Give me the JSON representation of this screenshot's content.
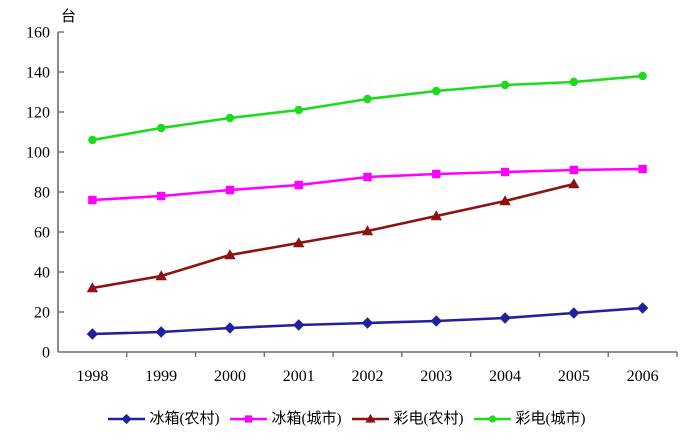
{
  "chart_data": {
    "type": "line",
    "title": "",
    "unit_label": "台",
    "xlabel": "",
    "ylabel": "台",
    "categories": [
      "1998",
      "1999",
      "2000",
      "2001",
      "2002",
      "2003",
      "2004",
      "2005",
      "2006"
    ],
    "series": [
      {
        "name": "冰箱(农村)",
        "marker": "diamond",
        "color": "#21219E",
        "values": [
          9,
          10,
          12,
          13.5,
          14.5,
          15.5,
          17,
          19.5,
          22
        ]
      },
      {
        "name": "冰箱(城市)",
        "marker": "square",
        "color": "#FF00FF",
        "values": [
          76,
          78,
          81,
          83.5,
          87.5,
          89,
          90,
          91,
          91.5
        ]
      },
      {
        "name": "彩电(农村)",
        "marker": "triangle",
        "color": "#8E1111",
        "values": [
          32,
          38,
          48.5,
          54.5,
          60.5,
          68,
          75.5,
          84,
          null
        ]
      },
      {
        "name": "彩电(城市)",
        "marker": "circle",
        "color": "#1CDB1C",
        "values": [
          106,
          112,
          117,
          121,
          126.5,
          130.5,
          133.5,
          135,
          138
        ]
      }
    ],
    "ylim": [
      0,
      160
    ],
    "y_tick_step": 20,
    "y_tick_labels": [
      "0",
      "20",
      "40",
      "60",
      "80",
      "100",
      "120",
      "140",
      "160"
    ],
    "grid": false,
    "legend_position": "bottom",
    "axis_color": "#6e6e6e",
    "text_color": "#000000"
  }
}
